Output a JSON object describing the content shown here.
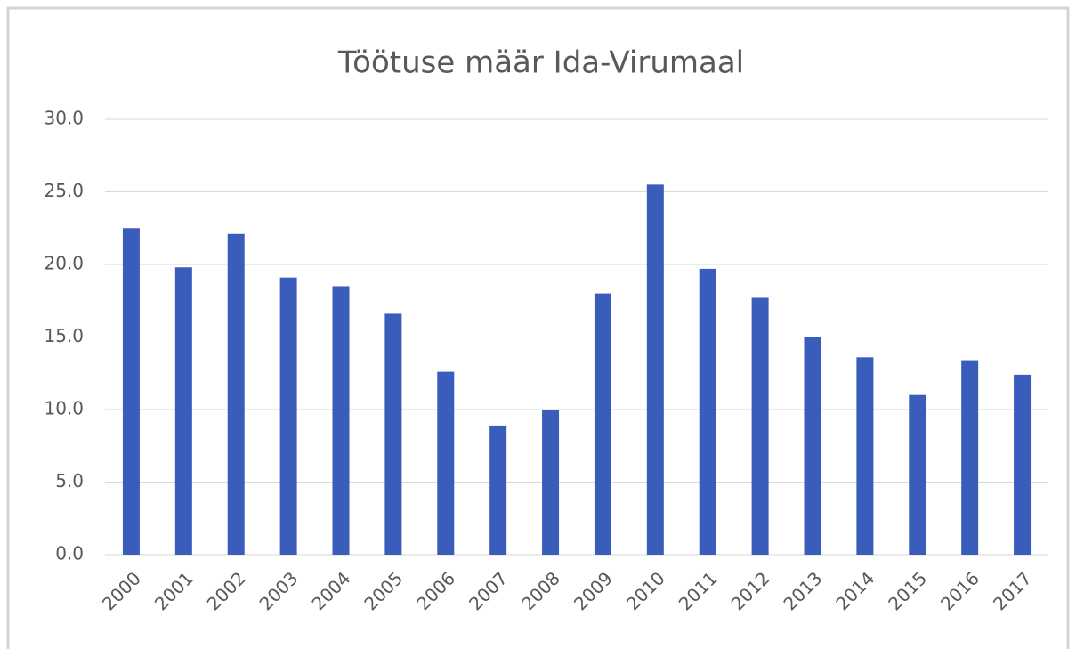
{
  "chart_data": {
    "type": "bar",
    "title": "Töötuse määr Ida-Virumaal",
    "categories": [
      "2000",
      "2001",
      "2002",
      "2003",
      "2004",
      "2005",
      "2006",
      "2007",
      "2008",
      "2009",
      "2010",
      "2011",
      "2012",
      "2013",
      "2014",
      "2015",
      "2016",
      "2017"
    ],
    "values": [
      22.5,
      19.8,
      22.1,
      19.1,
      18.5,
      16.6,
      12.6,
      8.9,
      10.0,
      18.0,
      25.5,
      19.7,
      17.7,
      15.0,
      13.6,
      11.0,
      13.4,
      12.4
    ],
    "color": "#3a5dbb",
    "ylim": [
      0,
      30
    ],
    "yticks": [
      {
        "value": 0,
        "label": "0.0"
      },
      {
        "value": 5,
        "label": "5.0"
      },
      {
        "value": 10,
        "label": "10.0"
      },
      {
        "value": 15,
        "label": "15.0"
      },
      {
        "value": 20,
        "label": "20.0"
      },
      {
        "value": 25,
        "label": "25.0"
      },
      {
        "value": 30,
        "label": "30.0"
      }
    ],
    "grid": true
  }
}
